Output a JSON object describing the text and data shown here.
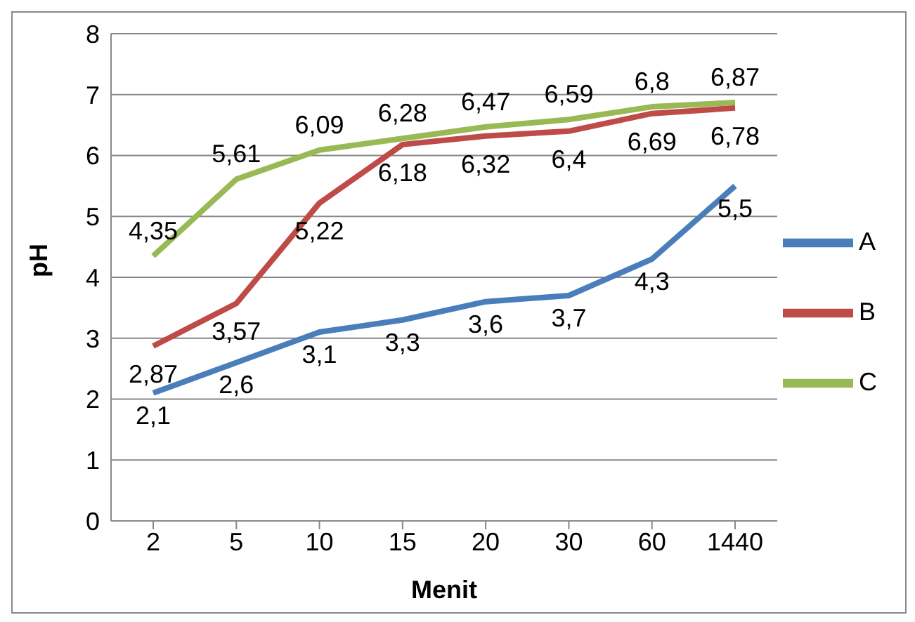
{
  "chart_data": {
    "type": "line",
    "xlabel": "Menit",
    "ylabel": "pH",
    "categories": [
      "2",
      "5",
      "10",
      "15",
      "20",
      "30",
      "60",
      "1440"
    ],
    "series": [
      {
        "name": "A",
        "color": "#4a7ebb",
        "values": [
          2.1,
          2.6,
          3.1,
          3.3,
          3.6,
          3.7,
          4.3,
          5.5
        ],
        "value_labels": [
          "2,1",
          "2,6",
          "3,1",
          "3,3",
          "3,6",
          "3,7",
          "4,3",
          "5,5"
        ]
      },
      {
        "name": "B",
        "color": "#be4b48",
        "values": [
          2.87,
          3.57,
          5.22,
          6.18,
          6.32,
          6.4,
          6.69,
          6.78
        ],
        "value_labels": [
          "2,87",
          "3,57",
          "5,22",
          "6,18",
          "6,32",
          "6,4",
          "6,69",
          "6,78"
        ]
      },
      {
        "name": "C",
        "color": "#98b954",
        "values": [
          4.35,
          5.61,
          6.09,
          6.28,
          6.47,
          6.59,
          6.8,
          6.87
        ],
        "value_labels": [
          "4,35",
          "5,61",
          "6,09",
          "6,28",
          "6,47",
          "6,59",
          "6,8",
          "6,87"
        ]
      }
    ],
    "ylim": [
      0,
      8
    ],
    "yticks": [
      0,
      1,
      2,
      3,
      4,
      5,
      6,
      7,
      8
    ],
    "grid": "y",
    "legend": "right",
    "marker": "none",
    "line_style": "solid"
  }
}
